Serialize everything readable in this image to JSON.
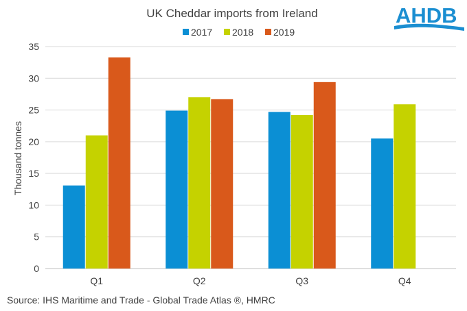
{
  "logo": {
    "text": "AHDB",
    "color": "#1a8ed1"
  },
  "source": "Source: IHS Maritime and Trade - Global Trade Atlas ®, HMRC",
  "chart_data": {
    "type": "bar",
    "title": "UK Cheddar imports from Ireland",
    "xlabel": "",
    "ylabel": "Thousand tonnes",
    "ylim": [
      0,
      35
    ],
    "yticks": [
      0,
      5,
      10,
      15,
      20,
      25,
      30,
      35
    ],
    "grid": true,
    "legend_position": "top",
    "categories": [
      "Q1",
      "Q2",
      "Q3",
      "Q4"
    ],
    "series": [
      {
        "name": "2017",
        "color": "#0b8fd4",
        "values": [
          13.1,
          24.9,
          24.7,
          20.5
        ]
      },
      {
        "name": "2018",
        "color": "#c5d200",
        "values": [
          21.0,
          27.0,
          24.2,
          25.9
        ]
      },
      {
        "name": "2019",
        "color": "#d9591b",
        "values": [
          33.3,
          26.7,
          29.4,
          null
        ]
      }
    ]
  }
}
